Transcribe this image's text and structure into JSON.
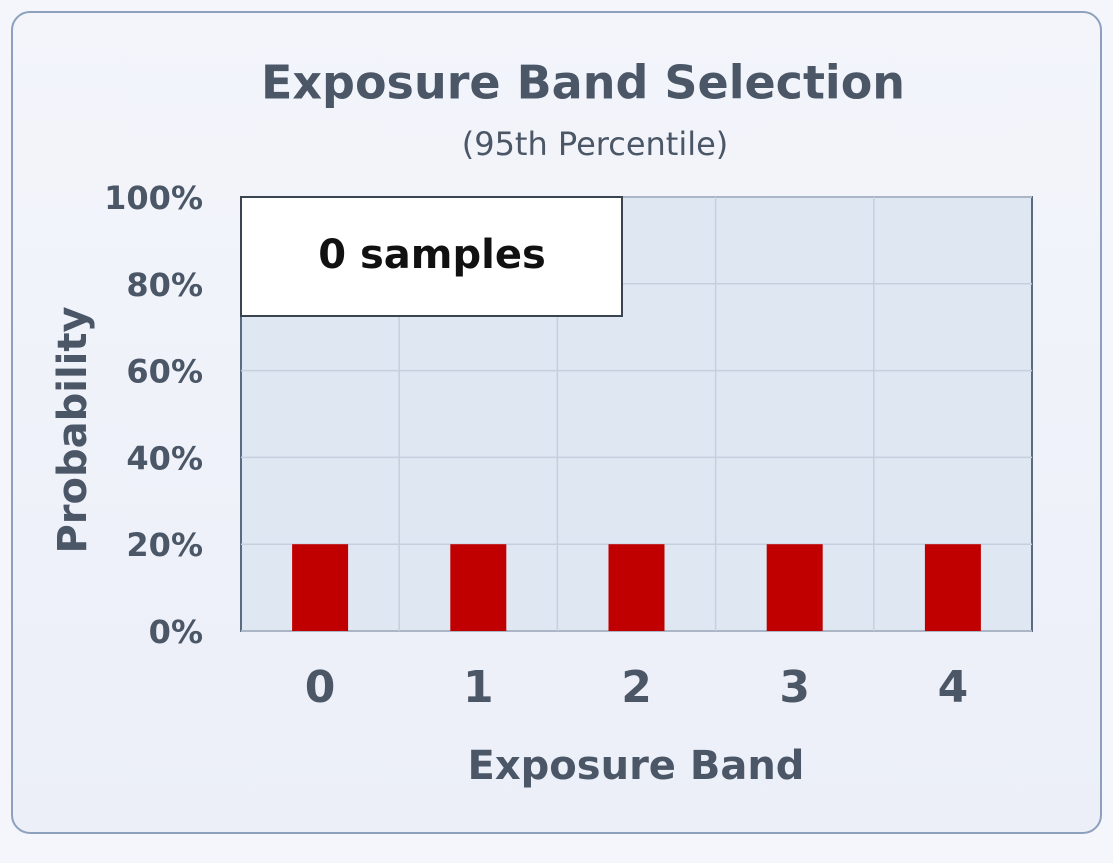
{
  "chart_data": {
    "type": "bar",
    "title": "Exposure Band Selection",
    "subtitle": "(95th Percentile)",
    "x_label": "Exposure Band",
    "y_label": "Probability",
    "annotation": "0 samples",
    "categories": [
      "0",
      "1",
      "2",
      "3",
      "4"
    ],
    "values": [
      20,
      20,
      20,
      20,
      20
    ],
    "color": "#c00000",
    "ylim": [
      0,
      100
    ],
    "yticks": [
      {
        "value": 0,
        "label": "0%"
      },
      {
        "value": 20,
        "label": "20%"
      },
      {
        "value": 40,
        "label": "40%"
      },
      {
        "value": 60,
        "label": "60%"
      },
      {
        "value": 80,
        "label": "80%"
      },
      {
        "value": 100,
        "label": "100%"
      }
    ],
    "grid": true
  }
}
